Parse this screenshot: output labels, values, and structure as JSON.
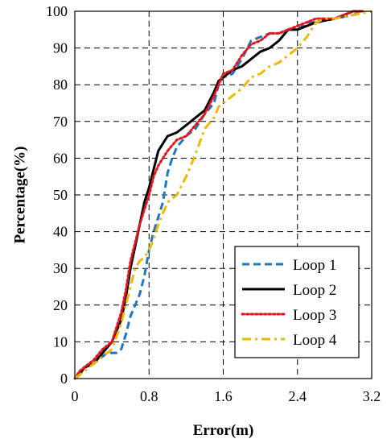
{
  "chart_data": {
    "type": "line",
    "title": "",
    "xlabel": "Error(m)",
    "ylabel": "Percentage(%)",
    "xlim": [
      0,
      3.2
    ],
    "ylim": [
      0,
      100
    ],
    "xticks": [
      "0",
      "0.8",
      "1.6",
      "2.4",
      "3.2"
    ],
    "yticks": [
      "0",
      "10",
      "20",
      "30",
      "40",
      "50",
      "60",
      "70",
      "80",
      "90",
      "100"
    ],
    "grid": "dashed",
    "legend_position": "bottom-right",
    "series": [
      {
        "name": "Loop 1",
        "color": "#1f77c4",
        "dash": "dashed",
        "points": [
          [
            0,
            0
          ],
          [
            0.05,
            1
          ],
          [
            0.1,
            3
          ],
          [
            0.2,
            4
          ],
          [
            0.3,
            6
          ],
          [
            0.35,
            7
          ],
          [
            0.45,
            7
          ],
          [
            0.5,
            8
          ],
          [
            0.55,
            12
          ],
          [
            0.6,
            17
          ],
          [
            0.65,
            20
          ],
          [
            0.7,
            23
          ],
          [
            0.75,
            28
          ],
          [
            0.8,
            35
          ],
          [
            0.85,
            40
          ],
          [
            0.9,
            44
          ],
          [
            0.95,
            48
          ],
          [
            1.0,
            56
          ],
          [
            1.05,
            60
          ],
          [
            1.1,
            63
          ],
          [
            1.2,
            66
          ],
          [
            1.3,
            68
          ],
          [
            1.4,
            72
          ],
          [
            1.5,
            75
          ],
          [
            1.55,
            80
          ],
          [
            1.6,
            82
          ],
          [
            1.7,
            83
          ],
          [
            1.8,
            87
          ],
          [
            1.9,
            92
          ],
          [
            2.0,
            93
          ],
          [
            2.1,
            94
          ],
          [
            2.2,
            94
          ],
          [
            2.3,
            95
          ],
          [
            2.4,
            95
          ],
          [
            2.5,
            97
          ],
          [
            2.6,
            97
          ],
          [
            2.8,
            98
          ],
          [
            3.0,
            99
          ],
          [
            3.1,
            100
          ]
        ]
      },
      {
        "name": "Loop 2",
        "color": "#000000",
        "dash": "solid",
        "points": [
          [
            0,
            0
          ],
          [
            0.05,
            1
          ],
          [
            0.1,
            3
          ],
          [
            0.2,
            4
          ],
          [
            0.3,
            7
          ],
          [
            0.4,
            10
          ],
          [
            0.5,
            16
          ],
          [
            0.55,
            22
          ],
          [
            0.6,
            30
          ],
          [
            0.65,
            36
          ],
          [
            0.7,
            42
          ],
          [
            0.75,
            48
          ],
          [
            0.8,
            52
          ],
          [
            0.85,
            57
          ],
          [
            0.9,
            62
          ],
          [
            0.95,
            64
          ],
          [
            1.0,
            66
          ],
          [
            1.1,
            67
          ],
          [
            1.2,
            69
          ],
          [
            1.3,
            71
          ],
          [
            1.4,
            73
          ],
          [
            1.5,
            78
          ],
          [
            1.55,
            81
          ],
          [
            1.6,
            82
          ],
          [
            1.7,
            84
          ],
          [
            1.8,
            85
          ],
          [
            1.9,
            87
          ],
          [
            2.0,
            89
          ],
          [
            2.1,
            90
          ],
          [
            2.2,
            92
          ],
          [
            2.3,
            95
          ],
          [
            2.4,
            95
          ],
          [
            2.5,
            96
          ],
          [
            2.6,
            97
          ],
          [
            2.8,
            98
          ],
          [
            3.0,
            100
          ],
          [
            3.1,
            100
          ]
        ]
      },
      {
        "name": "Loop 3",
        "color": "#e8141b",
        "dash": "dotted",
        "points": [
          [
            0,
            0
          ],
          [
            0.05,
            2
          ],
          [
            0.1,
            3
          ],
          [
            0.2,
            5
          ],
          [
            0.3,
            8
          ],
          [
            0.4,
            10
          ],
          [
            0.5,
            18
          ],
          [
            0.55,
            24
          ],
          [
            0.6,
            32
          ],
          [
            0.65,
            37
          ],
          [
            0.7,
            42
          ],
          [
            0.75,
            46
          ],
          [
            0.8,
            50
          ],
          [
            0.85,
            55
          ],
          [
            0.9,
            58
          ],
          [
            0.95,
            60
          ],
          [
            1.0,
            62
          ],
          [
            1.1,
            65
          ],
          [
            1.2,
            66
          ],
          [
            1.3,
            69
          ],
          [
            1.4,
            72
          ],
          [
            1.5,
            77
          ],
          [
            1.55,
            80
          ],
          [
            1.6,
            83
          ],
          [
            1.7,
            84
          ],
          [
            1.8,
            88
          ],
          [
            1.9,
            91
          ],
          [
            2.0,
            92
          ],
          [
            2.1,
            94
          ],
          [
            2.2,
            94
          ],
          [
            2.3,
            95
          ],
          [
            2.4,
            96
          ],
          [
            2.5,
            97
          ],
          [
            2.6,
            98
          ],
          [
            2.8,
            98
          ],
          [
            3.0,
            100
          ],
          [
            3.1,
            100
          ]
        ]
      },
      {
        "name": "Loop 4",
        "color": "#f2b800",
        "dash": "dashdot",
        "points": [
          [
            0,
            0
          ],
          [
            0.05,
            1
          ],
          [
            0.1,
            2
          ],
          [
            0.2,
            4
          ],
          [
            0.3,
            6
          ],
          [
            0.4,
            8
          ],
          [
            0.5,
            15
          ],
          [
            0.55,
            20
          ],
          [
            0.6,
            25
          ],
          [
            0.65,
            30
          ],
          [
            0.7,
            32
          ],
          [
            0.75,
            33
          ],
          [
            0.8,
            35
          ],
          [
            0.85,
            38
          ],
          [
            0.9,
            42
          ],
          [
            0.95,
            45
          ],
          [
            1.0,
            48
          ],
          [
            1.1,
            50
          ],
          [
            1.2,
            55
          ],
          [
            1.3,
            61
          ],
          [
            1.4,
            68
          ],
          [
            1.5,
            71
          ],
          [
            1.55,
            74
          ],
          [
            1.6,
            75
          ],
          [
            1.7,
            77
          ],
          [
            1.8,
            79
          ],
          [
            1.9,
            82
          ],
          [
            2.0,
            83
          ],
          [
            2.1,
            85
          ],
          [
            2.2,
            86
          ],
          [
            2.3,
            88
          ],
          [
            2.4,
            90
          ],
          [
            2.5,
            93
          ],
          [
            2.6,
            97
          ],
          [
            2.7,
            98
          ],
          [
            2.8,
            98
          ],
          [
            3.0,
            99
          ],
          [
            3.2,
            100
          ]
        ]
      }
    ]
  }
}
